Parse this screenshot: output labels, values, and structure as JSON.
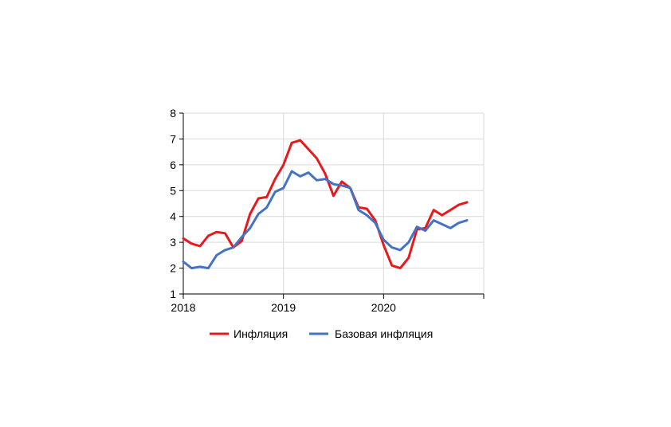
{
  "chart_data": {
    "type": "line",
    "title": "",
    "xlabel": "",
    "ylabel": "",
    "ylim": [
      1,
      8
    ],
    "yticks": [
      "1",
      "2",
      "3",
      "4",
      "5",
      "6",
      "7",
      "8"
    ],
    "xlim": [
      2018.0,
      2021.0
    ],
    "xticks": [
      {
        "label": "2018",
        "value": 2018
      },
      {
        "label": "2019",
        "value": 2019
      },
      {
        "label": "2020",
        "value": 2020
      }
    ],
    "grid": true,
    "legend_position": "bottom",
    "series": [
      {
        "name": "Инфляция",
        "color": "#e8191d",
        "x": [
          2018.0,
          2018.083,
          2018.167,
          2018.25,
          2018.333,
          2018.417,
          2018.5,
          2018.583,
          2018.667,
          2018.75,
          2018.833,
          2018.917,
          2019.0,
          2019.083,
          2019.167,
          2019.25,
          2019.333,
          2019.417,
          2019.5,
          2019.583,
          2019.667,
          2019.75,
          2019.833,
          2019.917,
          2020.0,
          2020.083,
          2020.167,
          2020.25,
          2020.333,
          2020.417,
          2020.5,
          2020.583,
          2020.667,
          2020.75,
          2020.833
        ],
        "values": [
          3.15,
          2.95,
          2.85,
          3.25,
          3.4,
          3.35,
          2.8,
          3.05,
          4.1,
          4.7,
          4.75,
          5.45,
          6.0,
          6.85,
          6.95,
          6.6,
          6.25,
          5.65,
          4.8,
          5.35,
          5.1,
          4.35,
          4.3,
          3.85,
          2.9,
          2.1,
          2.0,
          2.4,
          3.5,
          3.55,
          4.25,
          4.05,
          4.25,
          4.45,
          4.55
        ]
      },
      {
        "name": "Базовая инфляция",
        "color": "#4472c4",
        "x": [
          2018.0,
          2018.083,
          2018.167,
          2018.25,
          2018.333,
          2018.417,
          2018.5,
          2018.583,
          2018.667,
          2018.75,
          2018.833,
          2018.917,
          2019.0,
          2019.083,
          2019.167,
          2019.25,
          2019.333,
          2019.417,
          2019.5,
          2019.583,
          2019.667,
          2019.75,
          2019.833,
          2019.917,
          2020.0,
          2020.083,
          2020.167,
          2020.25,
          2020.333,
          2020.417,
          2020.5,
          2020.583,
          2020.667,
          2020.75,
          2020.833
        ],
        "values": [
          2.25,
          2.0,
          2.05,
          2.0,
          2.5,
          2.7,
          2.8,
          3.2,
          3.55,
          4.1,
          4.35,
          4.95,
          5.1,
          5.75,
          5.55,
          5.7,
          5.4,
          5.45,
          5.25,
          5.2,
          5.1,
          4.25,
          4.05,
          3.75,
          3.1,
          2.8,
          2.7,
          3.0,
          3.6,
          3.45,
          3.85,
          3.7,
          3.55,
          3.75,
          3.85
        ]
      }
    ]
  }
}
